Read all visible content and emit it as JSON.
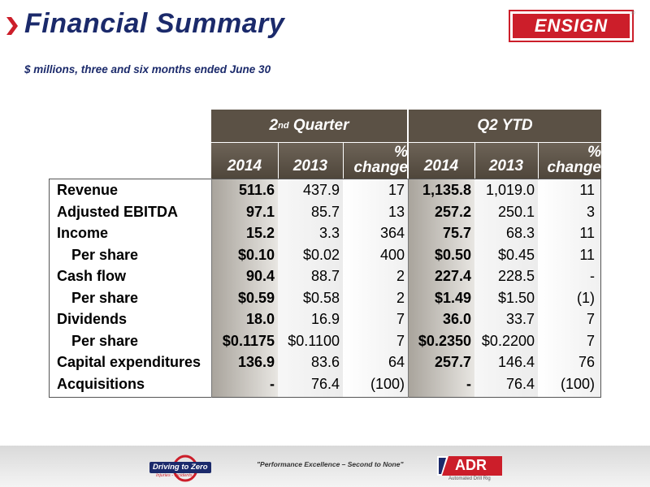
{
  "header": {
    "title": "Financial Summary",
    "subtitle": "$ millions, three and six months ended June 30",
    "logo_text": "ENSIGN",
    "logo_mark": "®"
  },
  "table": {
    "groups": {
      "quarter_prefix": "2",
      "quarter_sup": "nd",
      "quarter_suffix": " Quarter",
      "ytd": "Q2 YTD"
    },
    "columns": {
      "y2014": "2014",
      "y2013": "2013",
      "pct_top": "%",
      "pct_bottom": "change",
      "ytd2014": "2014",
      "ytd2013": "2013"
    },
    "rows": [
      {
        "label": "Revenue",
        "indent": false,
        "q14": "511.6",
        "q13": "437.9",
        "qp": "17",
        "y14": "1,135.8",
        "y13": "1,019.0",
        "yp": "11"
      },
      {
        "label": "Adjusted EBITDA",
        "indent": false,
        "q14": "97.1",
        "q13": "85.7",
        "qp": "13",
        "y14": "257.2",
        "y13": "250.1",
        "yp": "3"
      },
      {
        "label": "Income",
        "indent": false,
        "q14": "15.2",
        "q13": "3.3",
        "qp": "364",
        "y14": "75.7",
        "y13": "68.3",
        "yp": "11"
      },
      {
        "label": "Per share",
        "indent": true,
        "q14": "$0.10",
        "q13": "$0.02",
        "qp": "400",
        "y14": "$0.50",
        "y13": "$0.45",
        "yp": "11"
      },
      {
        "label": "Cash flow",
        "indent": false,
        "q14": "90.4",
        "q13": "88.7",
        "qp": "2",
        "y14": "227.4",
        "y13": "228.5",
        "yp": "-"
      },
      {
        "label": "Per share",
        "indent": true,
        "q14": "$0.59",
        "q13": "$0.58",
        "qp": "2",
        "y14": "$1.49",
        "y13": "$1.50",
        "yp": "(1)"
      },
      {
        "label": "Dividends",
        "indent": false,
        "q14": "18.0",
        "q13": "16.9",
        "qp": "7",
        "y14": "36.0",
        "y13": "33.7",
        "yp": "7"
      },
      {
        "label": "Per share",
        "indent": true,
        "q14": "$0.1175",
        "q13": "$0.1100",
        "qp": "7",
        "y14": "$0.2350",
        "y13": "$0.2200",
        "yp": "7"
      },
      {
        "label": "Capital expenditures",
        "indent": false,
        "q14": "136.9",
        "q13": "83.6",
        "qp": "64",
        "y14": "257.7",
        "y13": "146.4",
        "yp": "76"
      },
      {
        "label": "Acquisitions",
        "indent": false,
        "q14": "-",
        "q13": "76.4",
        "qp": "(100)",
        "y14": "-",
        "y13": "76.4",
        "yp": "(100)"
      }
    ]
  },
  "footer": {
    "left_logo_text": "Driving to Zero",
    "left_logo_sub": "Injuries - Incidents",
    "tagline": "\"Performance Excellence – Second to None\"",
    "right_logo_text": "ADR",
    "right_logo_sub": "Automated Drill Rig"
  },
  "colors": {
    "title_blue": "#1b2a6b",
    "brand_red": "#cc1e2a",
    "header_brown": "#5b5145"
  }
}
